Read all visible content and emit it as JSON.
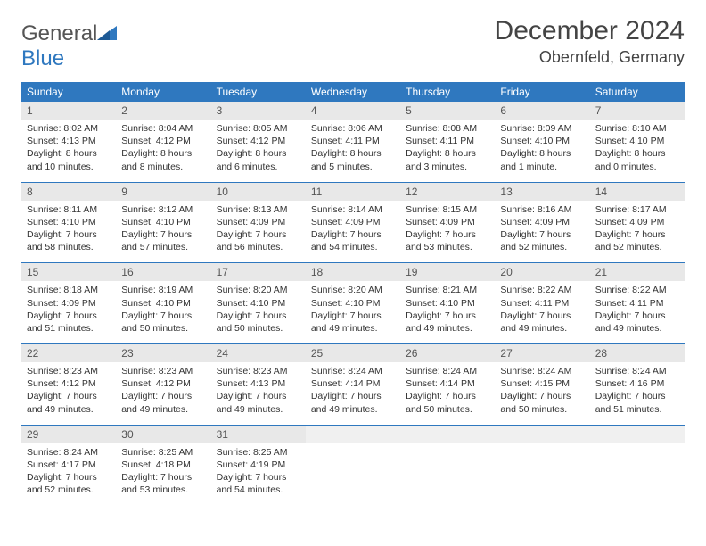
{
  "brand": {
    "name1": "General",
    "name2": "Blue"
  },
  "title": "December 2024",
  "location": "Obernfeld, Germany",
  "colors": {
    "header_bg": "#2f78bf",
    "header_text": "#ffffff",
    "daynum_bg": "#e8e8e8",
    "empty_bg": "#f0f0f0",
    "text": "#333333",
    "rule": "#2f78bf"
  },
  "typography": {
    "title_fontsize": 30,
    "location_fontsize": 18,
    "dow_fontsize": 12,
    "cell_fontsize": 10.5
  },
  "days_of_week": [
    "Sunday",
    "Monday",
    "Tuesday",
    "Wednesday",
    "Thursday",
    "Friday",
    "Saturday"
  ],
  "weeks": [
    [
      {
        "n": "1",
        "sunrise": "Sunrise: 8:02 AM",
        "sunset": "Sunset: 4:13 PM",
        "daylight": "Daylight: 8 hours and 10 minutes."
      },
      {
        "n": "2",
        "sunrise": "Sunrise: 8:04 AM",
        "sunset": "Sunset: 4:12 PM",
        "daylight": "Daylight: 8 hours and 8 minutes."
      },
      {
        "n": "3",
        "sunrise": "Sunrise: 8:05 AM",
        "sunset": "Sunset: 4:12 PM",
        "daylight": "Daylight: 8 hours and 6 minutes."
      },
      {
        "n": "4",
        "sunrise": "Sunrise: 8:06 AM",
        "sunset": "Sunset: 4:11 PM",
        "daylight": "Daylight: 8 hours and 5 minutes."
      },
      {
        "n": "5",
        "sunrise": "Sunrise: 8:08 AM",
        "sunset": "Sunset: 4:11 PM",
        "daylight": "Daylight: 8 hours and 3 minutes."
      },
      {
        "n": "6",
        "sunrise": "Sunrise: 8:09 AM",
        "sunset": "Sunset: 4:10 PM",
        "daylight": "Daylight: 8 hours and 1 minute."
      },
      {
        "n": "7",
        "sunrise": "Sunrise: 8:10 AM",
        "sunset": "Sunset: 4:10 PM",
        "daylight": "Daylight: 8 hours and 0 minutes."
      }
    ],
    [
      {
        "n": "8",
        "sunrise": "Sunrise: 8:11 AM",
        "sunset": "Sunset: 4:10 PM",
        "daylight": "Daylight: 7 hours and 58 minutes."
      },
      {
        "n": "9",
        "sunrise": "Sunrise: 8:12 AM",
        "sunset": "Sunset: 4:10 PM",
        "daylight": "Daylight: 7 hours and 57 minutes."
      },
      {
        "n": "10",
        "sunrise": "Sunrise: 8:13 AM",
        "sunset": "Sunset: 4:09 PM",
        "daylight": "Daylight: 7 hours and 56 minutes."
      },
      {
        "n": "11",
        "sunrise": "Sunrise: 8:14 AM",
        "sunset": "Sunset: 4:09 PM",
        "daylight": "Daylight: 7 hours and 54 minutes."
      },
      {
        "n": "12",
        "sunrise": "Sunrise: 8:15 AM",
        "sunset": "Sunset: 4:09 PM",
        "daylight": "Daylight: 7 hours and 53 minutes."
      },
      {
        "n": "13",
        "sunrise": "Sunrise: 8:16 AM",
        "sunset": "Sunset: 4:09 PM",
        "daylight": "Daylight: 7 hours and 52 minutes."
      },
      {
        "n": "14",
        "sunrise": "Sunrise: 8:17 AM",
        "sunset": "Sunset: 4:09 PM",
        "daylight": "Daylight: 7 hours and 52 minutes."
      }
    ],
    [
      {
        "n": "15",
        "sunrise": "Sunrise: 8:18 AM",
        "sunset": "Sunset: 4:09 PM",
        "daylight": "Daylight: 7 hours and 51 minutes."
      },
      {
        "n": "16",
        "sunrise": "Sunrise: 8:19 AM",
        "sunset": "Sunset: 4:10 PM",
        "daylight": "Daylight: 7 hours and 50 minutes."
      },
      {
        "n": "17",
        "sunrise": "Sunrise: 8:20 AM",
        "sunset": "Sunset: 4:10 PM",
        "daylight": "Daylight: 7 hours and 50 minutes."
      },
      {
        "n": "18",
        "sunrise": "Sunrise: 8:20 AM",
        "sunset": "Sunset: 4:10 PM",
        "daylight": "Daylight: 7 hours and 49 minutes."
      },
      {
        "n": "19",
        "sunrise": "Sunrise: 8:21 AM",
        "sunset": "Sunset: 4:10 PM",
        "daylight": "Daylight: 7 hours and 49 minutes."
      },
      {
        "n": "20",
        "sunrise": "Sunrise: 8:22 AM",
        "sunset": "Sunset: 4:11 PM",
        "daylight": "Daylight: 7 hours and 49 minutes."
      },
      {
        "n": "21",
        "sunrise": "Sunrise: 8:22 AM",
        "sunset": "Sunset: 4:11 PM",
        "daylight": "Daylight: 7 hours and 49 minutes."
      }
    ],
    [
      {
        "n": "22",
        "sunrise": "Sunrise: 8:23 AM",
        "sunset": "Sunset: 4:12 PM",
        "daylight": "Daylight: 7 hours and 49 minutes."
      },
      {
        "n": "23",
        "sunrise": "Sunrise: 8:23 AM",
        "sunset": "Sunset: 4:12 PM",
        "daylight": "Daylight: 7 hours and 49 minutes."
      },
      {
        "n": "24",
        "sunrise": "Sunrise: 8:23 AM",
        "sunset": "Sunset: 4:13 PM",
        "daylight": "Daylight: 7 hours and 49 minutes."
      },
      {
        "n": "25",
        "sunrise": "Sunrise: 8:24 AM",
        "sunset": "Sunset: 4:14 PM",
        "daylight": "Daylight: 7 hours and 49 minutes."
      },
      {
        "n": "26",
        "sunrise": "Sunrise: 8:24 AM",
        "sunset": "Sunset: 4:14 PM",
        "daylight": "Daylight: 7 hours and 50 minutes."
      },
      {
        "n": "27",
        "sunrise": "Sunrise: 8:24 AM",
        "sunset": "Sunset: 4:15 PM",
        "daylight": "Daylight: 7 hours and 50 minutes."
      },
      {
        "n": "28",
        "sunrise": "Sunrise: 8:24 AM",
        "sunset": "Sunset: 4:16 PM",
        "daylight": "Daylight: 7 hours and 51 minutes."
      }
    ],
    [
      {
        "n": "29",
        "sunrise": "Sunrise: 8:24 AM",
        "sunset": "Sunset: 4:17 PM",
        "daylight": "Daylight: 7 hours and 52 minutes."
      },
      {
        "n": "30",
        "sunrise": "Sunrise: 8:25 AM",
        "sunset": "Sunset: 4:18 PM",
        "daylight": "Daylight: 7 hours and 53 minutes."
      },
      {
        "n": "31",
        "sunrise": "Sunrise: 8:25 AM",
        "sunset": "Sunset: 4:19 PM",
        "daylight": "Daylight: 7 hours and 54 minutes."
      },
      null,
      null,
      null,
      null
    ]
  ]
}
